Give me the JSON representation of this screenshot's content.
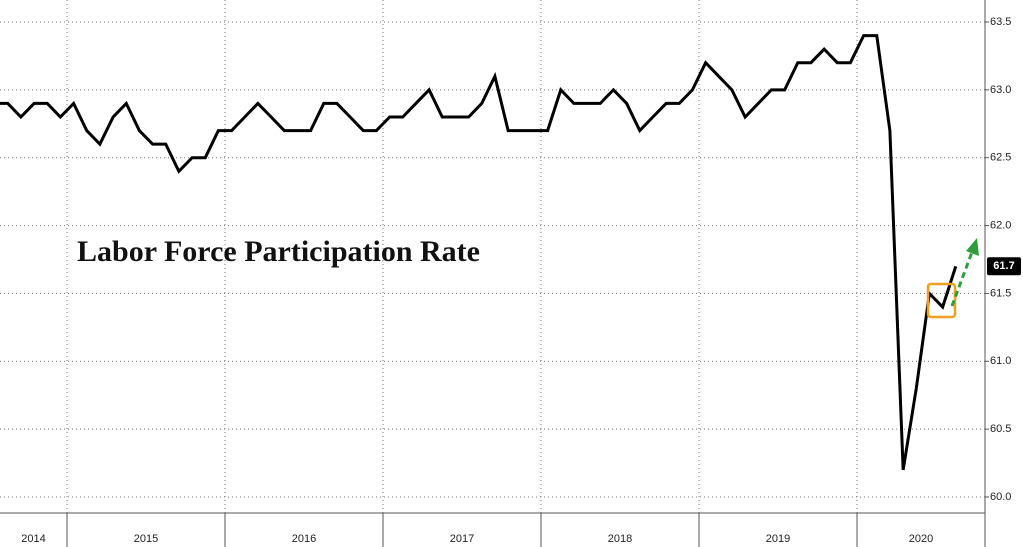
{
  "chart_data": {
    "type": "line",
    "title": "Labor Force Participation Rate",
    "x": [
      2014.542,
      2014.625,
      2014.708,
      2014.792,
      2014.875,
      2014.958,
      2015.042,
      2015.125,
      2015.208,
      2015.292,
      2015.375,
      2015.458,
      2015.542,
      2015.625,
      2015.708,
      2015.792,
      2015.875,
      2015.958,
      2016.042,
      2016.125,
      2016.208,
      2016.292,
      2016.375,
      2016.458,
      2016.542,
      2016.625,
      2016.708,
      2016.792,
      2016.875,
      2016.958,
      2017.042,
      2017.125,
      2017.208,
      2017.292,
      2017.375,
      2017.458,
      2017.542,
      2017.625,
      2017.708,
      2017.792,
      2017.875,
      2017.958,
      2018.042,
      2018.125,
      2018.208,
      2018.292,
      2018.375,
      2018.458,
      2018.542,
      2018.625,
      2018.708,
      2018.792,
      2018.875,
      2018.958,
      2019.042,
      2019.125,
      2019.208,
      2019.292,
      2019.375,
      2019.458,
      2019.542,
      2019.625,
      2019.708,
      2019.792,
      2019.875,
      2019.958,
      2020.042,
      2020.125,
      2020.208,
      2020.292,
      2020.375,
      2020.458,
      2020.542,
      2020.625
    ],
    "series": [
      {
        "color": "#000000",
        "values": [
          62.9,
          62.9,
          62.8,
          62.9,
          62.9,
          62.8,
          62.9,
          62.7,
          62.6,
          62.8,
          62.9,
          62.7,
          62.6,
          62.6,
          62.4,
          62.5,
          62.5,
          62.7,
          62.7,
          62.8,
          62.9,
          62.8,
          62.7,
          62.7,
          62.7,
          62.9,
          62.9,
          62.8,
          62.7,
          62.7,
          62.8,
          62.8,
          62.9,
          63.0,
          62.8,
          62.8,
          62.8,
          62.9,
          63.1,
          62.7,
          62.7,
          62.7,
          62.7,
          63.0,
          62.9,
          62.9,
          62.9,
          63.0,
          62.9,
          62.7,
          62.8,
          62.9,
          62.9,
          63.0,
          63.2,
          63.1,
          63.0,
          62.8,
          62.9,
          63.0,
          63.0,
          63.2,
          63.2,
          63.3,
          63.2,
          63.2,
          63.4,
          63.4,
          62.7,
          60.2,
          60.8,
          61.5,
          61.4,
          61.7
        ]
      }
    ],
    "xlim": [
      2014.576,
      2020.81
    ],
    "xticks": [
      {
        "value": 2014,
        "label": "2014"
      },
      {
        "value": 2015,
        "label": "2015"
      },
      {
        "value": 2016,
        "label": "2016"
      },
      {
        "value": 2017,
        "label": "2017"
      },
      {
        "value": 2018,
        "label": "2018"
      },
      {
        "value": 2019,
        "label": "2019"
      },
      {
        "value": 2020,
        "label": "2020"
      }
    ],
    "ylim": [
      60.0,
      63.5
    ],
    "yticks": [
      {
        "value": 60.0,
        "label": "60.0"
      },
      {
        "value": 60.5,
        "label": "60.5"
      },
      {
        "value": 61.0,
        "label": "61.0"
      },
      {
        "value": 61.5,
        "label": "61.5"
      },
      {
        "value": 62.0,
        "label": "62.0"
      },
      {
        "value": 62.5,
        "label": "62.5"
      },
      {
        "value": 63.0,
        "label": "63.0"
      },
      {
        "value": 63.5,
        "label": "63.5"
      }
    ],
    "grid": true
  }
}
